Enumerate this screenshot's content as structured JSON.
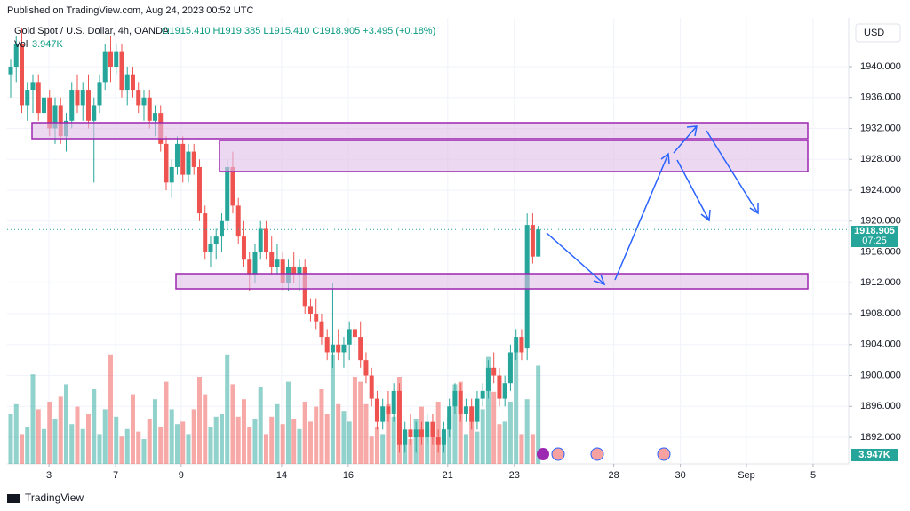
{
  "chart_data": {
    "type": "candlestick",
    "published": "Published on TradingView.com, Aug 24, 2023 00:52 UTC",
    "title": "Gold Spot / U.S. Dollar, 4h, OANDA",
    "ohlc_text": "O1915.410 H1919.385 L1915.410 C1918.905 +3.495 (+0.18%)",
    "volume_label": "Vol",
    "volume_value": "3.947K",
    "currency": "USD",
    "last_price_label": "1918.905",
    "last_price": 1918.905,
    "countdown": "07:25",
    "brand": "TradingView",
    "up_color": "#26a69a",
    "down_color": "#ef5350",
    "xlim": [
      -0.64,
      150.9
    ],
    "xticks": [
      {
        "value": 6.9,
        "label": "3"
      },
      {
        "value": 18.9,
        "label": "7"
      },
      {
        "value": 30.7,
        "label": "9"
      },
      {
        "value": 48.8,
        "label": "14"
      },
      {
        "value": 60.8,
        "label": "16"
      },
      {
        "value": 78.7,
        "label": "21"
      },
      {
        "value": 90.7,
        "label": "23"
      },
      {
        "value": 108.6,
        "label": "28"
      },
      {
        "value": 120.6,
        "label": "30"
      },
      {
        "value": 132.5,
        "label": "Sep"
      },
      {
        "value": 144.5,
        "label": "5"
      }
    ],
    "ylim": [
      1888.55,
      1946.33
    ],
    "yticks": [
      {
        "value": 1892,
        "label": "1892.000"
      },
      {
        "value": 1896,
        "label": "1896.000"
      },
      {
        "value": 1900,
        "label": "1900.000"
      },
      {
        "value": 1904,
        "label": "1904.000"
      },
      {
        "value": 1908,
        "label": "1908.000"
      },
      {
        "value": 1912,
        "label": "1912.000"
      },
      {
        "value": 1916,
        "label": "1916.000"
      },
      {
        "value": 1920,
        "label": "1920.000"
      },
      {
        "value": 1924,
        "label": "1924.000"
      },
      {
        "value": 1928,
        "label": "1928.000"
      },
      {
        "value": 1932,
        "label": "1932.000"
      },
      {
        "value": 1936,
        "label": "1936.000"
      },
      {
        "value": 1940,
        "label": "1940.000"
      }
    ],
    "candles": [
      [
        1939,
        1941,
        1936,
        1940
      ],
      [
        1940,
        1944,
        1938,
        1943
      ],
      [
        1943,
        1945,
        1934,
        1935
      ],
      [
        1935,
        1938,
        1933,
        1937
      ],
      [
        1937,
        1939,
        1934,
        1938
      ],
      [
        1938,
        1939,
        1933,
        1934
      ],
      [
        1934,
        1937,
        1932,
        1936
      ],
      [
        1936,
        1937,
        1931,
        1932
      ],
      [
        1932,
        1936,
        1930,
        1935
      ],
      [
        1935,
        1936,
        1930,
        1931
      ],
      [
        1931,
        1934,
        1929,
        1933
      ],
      [
        1933,
        1938,
        1932,
        1937
      ],
      [
        1937,
        1939,
        1934,
        1935
      ],
      [
        1935,
        1938,
        1933,
        1937
      ],
      [
        1937,
        1939,
        1932,
        1933
      ],
      [
        1933,
        1936,
        1925,
        1935
      ],
      [
        1935,
        1939,
        1934,
        1938
      ],
      [
        1938,
        1943,
        1937,
        1942
      ],
      [
        1942,
        1944,
        1938,
        1940
      ],
      [
        1940,
        1943,
        1939,
        1942
      ],
      [
        1942,
        1943,
        1936,
        1937
      ],
      [
        1937,
        1940,
        1935,
        1939
      ],
      [
        1939,
        1940,
        1936,
        1937
      ],
      [
        1937,
        1938,
        1934,
        1935
      ],
      [
        1935,
        1937,
        1933,
        1936
      ],
      [
        1936,
        1937,
        1932,
        1933
      ],
      [
        1933,
        1935,
        1931,
        1934
      ],
      [
        1934,
        1935,
        1929,
        1930
      ],
      [
        1930,
        1931,
        1924,
        1925
      ],
      [
        1925,
        1928,
        1923,
        1927
      ],
      [
        1927,
        1931,
        1926,
        1930
      ],
      [
        1930,
        1931,
        1925,
        1926
      ],
      [
        1926,
        1930,
        1925,
        1929
      ],
      [
        1929,
        1930,
        1926,
        1927
      ],
      [
        1927,
        1928,
        1920,
        1921
      ],
      [
        1921,
        1922,
        1915,
        1916
      ],
      [
        1916,
        1918,
        1914,
        1917
      ],
      [
        1917,
        1919,
        1915,
        1918
      ],
      [
        1918,
        1921,
        1916,
        1920
      ],
      [
        1920,
        1928,
        1919,
        1927
      ],
      [
        1927,
        1929,
        1921,
        1922
      ],
      [
        1922,
        1923,
        1917,
        1918
      ],
      [
        1918,
        1920,
        1914,
        1915
      ],
      [
        1915,
        1916,
        1911,
        1913
      ],
      [
        1913,
        1917,
        1912,
        1916
      ],
      [
        1916,
        1920,
        1915,
        1919
      ],
      [
        1919,
        1920,
        1915,
        1916
      ],
      [
        1916,
        1918,
        1913,
        1914
      ],
      [
        1914,
        1917,
        1913,
        1915
      ],
      [
        1915,
        1916,
        1911,
        1912
      ],
      [
        1912,
        1915,
        1911,
        1914
      ],
      [
        1914,
        1916,
        1912,
        1913
      ],
      [
        1913,
        1915,
        1911,
        1914
      ],
      [
        1914,
        1915,
        1908,
        1909
      ],
      [
        1909,
        1910,
        1907,
        1908
      ],
      [
        1908,
        1910,
        1906,
        1907
      ],
      [
        1907,
        1908,
        1904,
        1905
      ],
      [
        1905,
        1906,
        1902,
        1903
      ],
      [
        1903,
        1912,
        1901,
        1904
      ],
      [
        1904,
        1906,
        1902,
        1903
      ],
      [
        1903,
        1905,
        1901,
        1904
      ],
      [
        1904,
        1907,
        1902,
        1906
      ],
      [
        1906,
        1907,
        1903,
        1905
      ],
      [
        1905,
        1907,
        1901,
        1902
      ],
      [
        1902,
        1903,
        1899,
        1900
      ],
      [
        1900,
        1901,
        1896,
        1897
      ],
      [
        1897,
        1898,
        1893,
        1894
      ],
      [
        1894,
        1897,
        1893,
        1896
      ],
      [
        1896,
        1898,
        1894,
        1895
      ],
      [
        1895,
        1899,
        1894,
        1898
      ],
      [
        1898,
        1899,
        1890,
        1891
      ],
      [
        1891,
        1894,
        1890,
        1893
      ],
      [
        1893,
        1895,
        1891,
        1892
      ],
      [
        1892,
        1894,
        1890,
        1893
      ],
      [
        1893,
        1894,
        1891,
        1892
      ],
      [
        1892,
        1895,
        1891,
        1894
      ],
      [
        1894,
        1895,
        1891,
        1892
      ],
      [
        1892,
        1893,
        1890,
        1891
      ],
      [
        1891,
        1894,
        1890,
        1893
      ],
      [
        1893,
        1897,
        1892,
        1896
      ],
      [
        1896,
        1899,
        1895,
        1898
      ],
      [
        1898,
        1899,
        1894,
        1895
      ],
      [
        1895,
        1897,
        1894,
        1896
      ],
      [
        1896,
        1897,
        1893,
        1894
      ],
      [
        1894,
        1898,
        1893,
        1897
      ],
      [
        1897,
        1899,
        1896,
        1898
      ],
      [
        1898,
        1902,
        1897,
        1901
      ],
      [
        1901,
        1903,
        1899,
        1900
      ],
      [
        1900,
        1901,
        1896,
        1897
      ],
      [
        1897,
        1900,
        1896,
        1899
      ],
      [
        1899,
        1904,
        1898,
        1903
      ],
      [
        1903,
        1906,
        1902,
        1905
      ],
      [
        1905,
        1906,
        1902,
        1903
      ],
      [
        1903.5,
        1921,
        1902,
        1919.5
      ],
      [
        1919.5,
        1921,
        1914.5,
        1915.4
      ],
      [
        1915.41,
        1919.385,
        1915.41,
        1918.905
      ]
    ],
    "volume": [
      2.0,
      2.4,
      1.2,
      1.5,
      3.6,
      2.2,
      1.4,
      2.5,
      1.8,
      2.7,
      3.2,
      1.6,
      2.3,
      1.4,
      2.0,
      3.0,
      1.2,
      2.2,
      4.4,
      1.9,
      1.1,
      1.4,
      2.8,
      1.3,
      1.0,
      1.8,
      2.6,
      1.5,
      3.3,
      2.2,
      1.6,
      1.7,
      1.2,
      2.2,
      3.5,
      2.8,
      1.5,
      1.9,
      2.0,
      4.4,
      3.2,
      1.9,
      2.6,
      1.5,
      1.8,
      3.1,
      1.2,
      1.9,
      2.4,
      1.6,
      3.3,
      1.8,
      1.4,
      2.5,
      1.7,
      2.3,
      3.0,
      2.0,
      4.4,
      2.4,
      2.1,
      1.7,
      3.5,
      3.3,
      2.4,
      1.1,
      1.5,
      1.2,
      2.4,
      1.9,
      3.5,
      1.3,
      1.0,
      1.8,
      2.3,
      1.4,
      1.2,
      2.5,
      1.4,
      1.9,
      3.2,
      3.3,
      1.2,
      1.9,
      1.3,
      2.2,
      4.3,
      2.9,
      1.6,
      1.7,
      2.5,
      4.8,
      1.2,
      2.6,
      1.2,
      3.947
    ]
  }
}
